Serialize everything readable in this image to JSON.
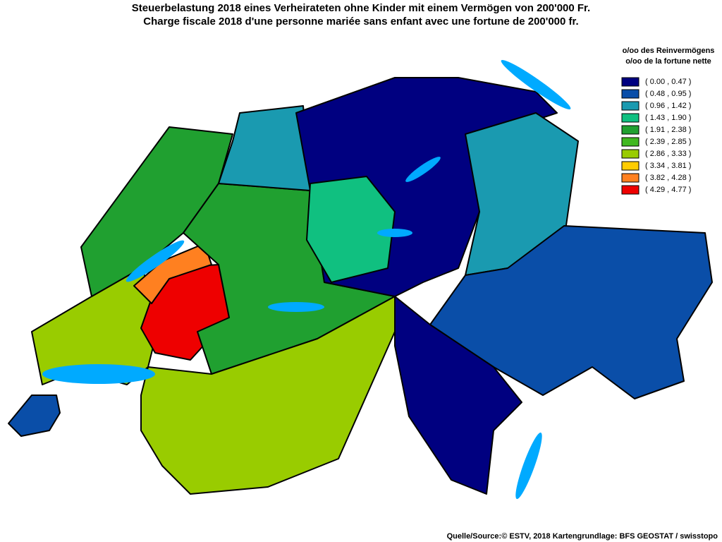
{
  "title": [
    "Steuerbelastung 2018 eines Verheirateten ohne Kinder mit einem Vermögen von 200'000 Fr.",
    "Charge fiscale 2018 d'une personne mariée sans enfant avec une fortune de 200'000 fr."
  ],
  "legend": {
    "title": [
      "o/oo des Reinvermögens",
      "o/oo de la fortune nette"
    ],
    "items": [
      {
        "label": "( 0.00 , 0.47 )",
        "color": "#000080"
      },
      {
        "label": "( 0.48 , 0.95 )",
        "color": "#0a4ea8"
      },
      {
        "label": "( 0.96 , 1.42 )",
        "color": "#1a9ab0"
      },
      {
        "label": "( 1.43 , 1.90 )",
        "color": "#10c080"
      },
      {
        "label": "( 1.91 , 2.38 )",
        "color": "#20a030"
      },
      {
        "label": "( 2.39 , 2.85 )",
        "color": "#40b820"
      },
      {
        "label": "( 2.86 , 3.33 )",
        "color": "#99cc00"
      },
      {
        "label": "( 3.34 , 3.81 )",
        "color": "#ffcc00"
      },
      {
        "label": "( 3.82 , 4.28 )",
        "color": "#ff8020"
      },
      {
        "label": "( 4.29 , 4.77 )",
        "color": "#ee0000"
      }
    ]
  },
  "source": "Quelle/Source:© ESTV, 2018 Kartengrundlage: BFS GEOSTAT / swisstopo"
}
